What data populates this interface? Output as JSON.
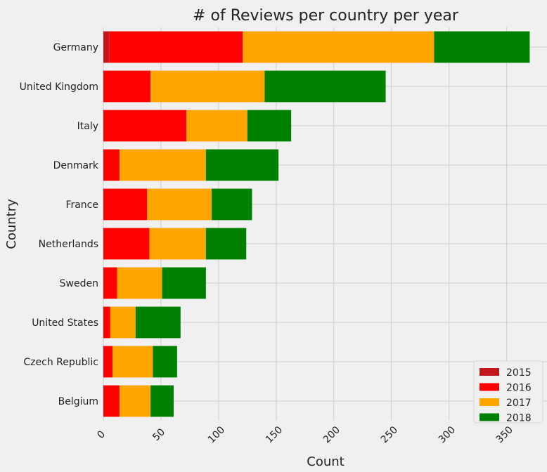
{
  "chart_data": {
    "type": "bar",
    "orientation": "horizontal",
    "stacked": true,
    "title": "# of Reviews per country per year",
    "xlabel": "Count",
    "ylabel": "Country",
    "xlim": [
      0,
      385
    ],
    "xticks": [
      0,
      50,
      100,
      150,
      200,
      250,
      300,
      350
    ],
    "grid": true,
    "legend_position": "bottom-right",
    "categories": [
      "Germany",
      "United Kingdom",
      "Italy",
      "Denmark",
      "France",
      "Netherlands",
      "Sweden",
      "United States",
      "Czech Republic",
      "Belgium"
    ],
    "series": [
      {
        "name": "2015",
        "color": "#c0181c",
        "values": [
          5,
          0,
          0,
          0,
          0,
          0,
          0,
          0,
          0,
          0
        ]
      },
      {
        "name": "2016",
        "color": "#ff0000",
        "values": [
          116,
          41,
          72,
          14,
          38,
          40,
          12,
          6,
          8,
          14
        ]
      },
      {
        "name": "2017",
        "color": "#ffa500",
        "values": [
          166,
          99,
          53,
          75,
          56,
          49,
          39,
          22,
          35,
          27
        ]
      },
      {
        "name": "2018",
        "color": "#008000",
        "values": [
          83,
          105,
          38,
          63,
          35,
          35,
          38,
          39,
          21,
          20
        ]
      }
    ]
  }
}
